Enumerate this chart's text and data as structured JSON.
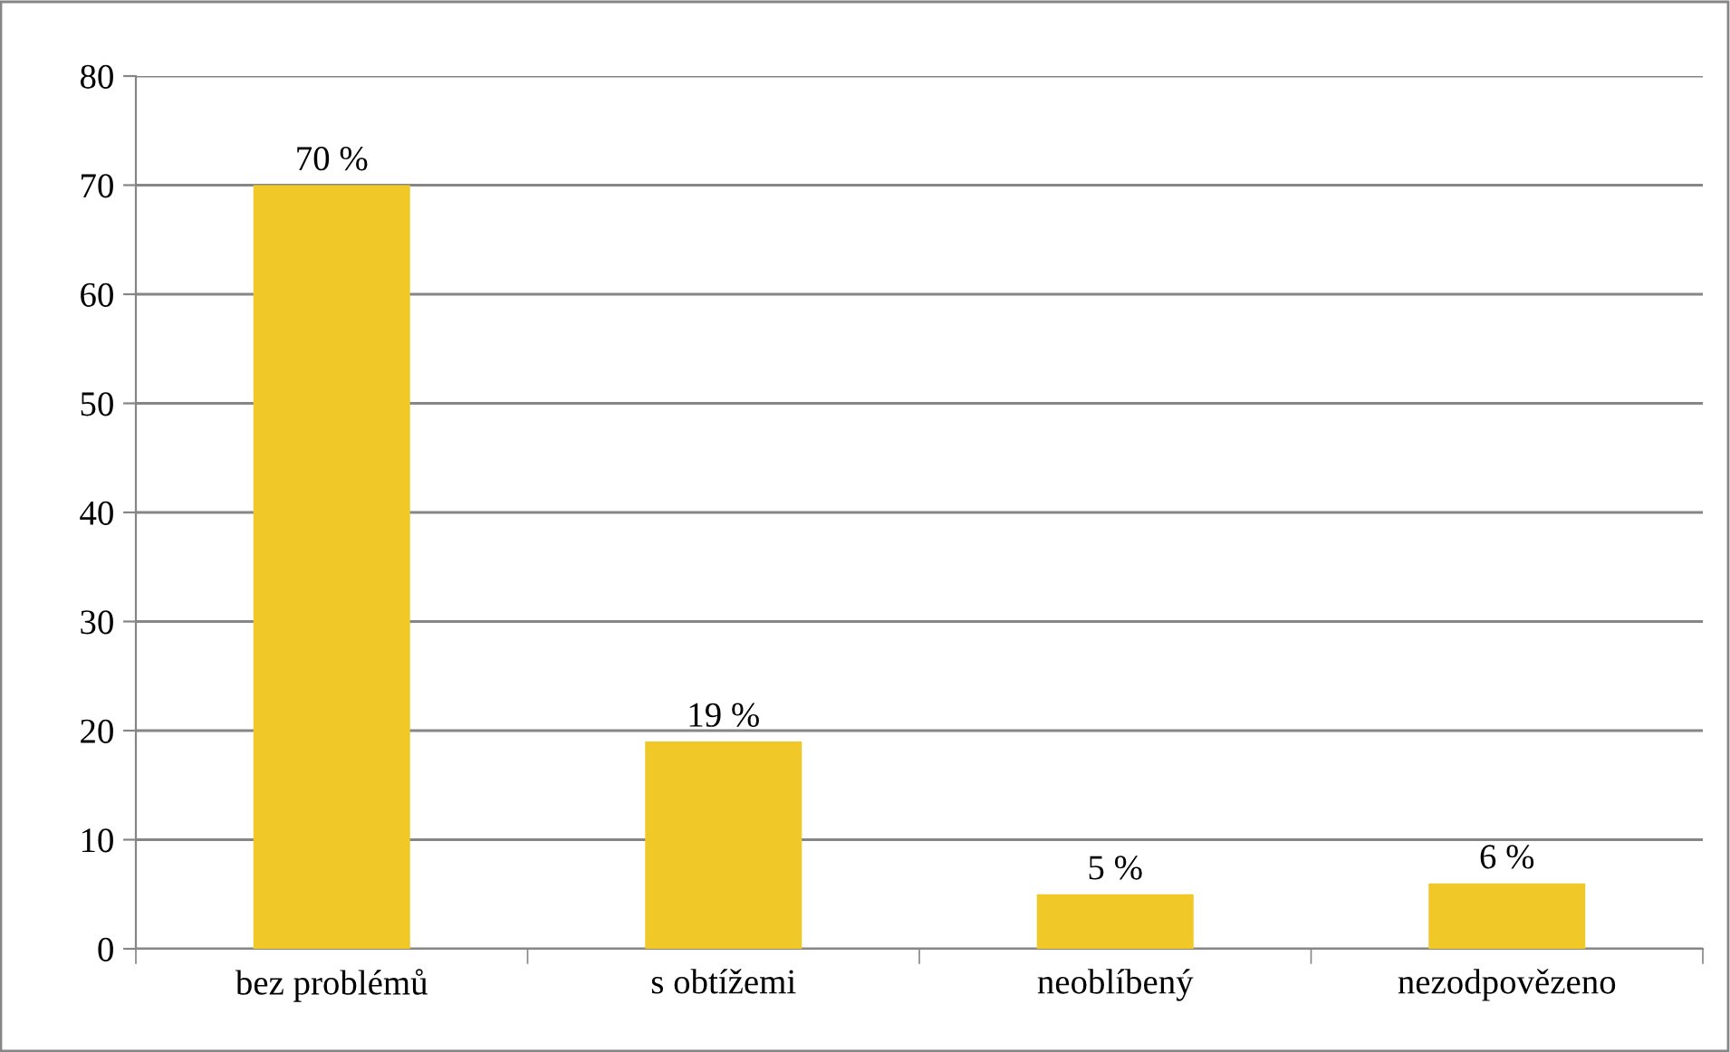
{
  "chart_data": {
    "type": "bar",
    "categories": [
      "bez problémů",
      "s obtížemi",
      "neoblíbený",
      "nezodpovězeno"
    ],
    "values": [
      70,
      19,
      5,
      6
    ],
    "value_labels": [
      "70 %",
      "19 %",
      "5 %",
      "6 %"
    ],
    "color": "#f0c929",
    "ylim": [
      0,
      80
    ],
    "yticks": [
      0,
      10,
      20,
      30,
      40,
      50,
      60,
      70,
      80
    ],
    "grid": "y",
    "legend": false
  }
}
